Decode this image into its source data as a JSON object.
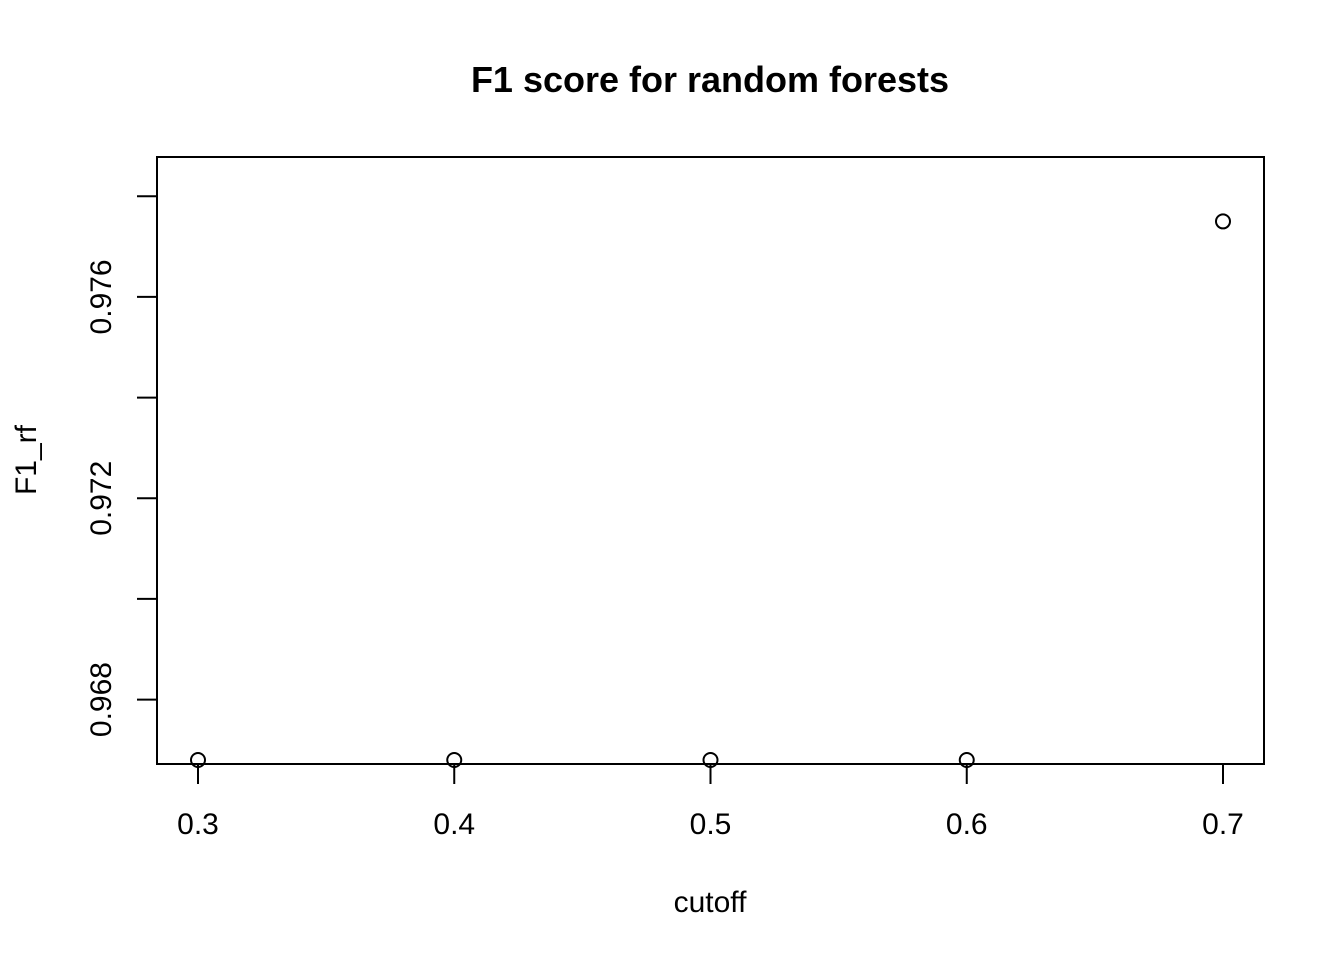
{
  "chart_data": {
    "type": "scatter",
    "title": "F1 score for random forests",
    "xlabel": "cutoff",
    "ylabel": "F1_rf",
    "x": [
      0.3,
      0.4,
      0.5,
      0.6,
      0.7
    ],
    "y": [
      0.9668,
      0.9668,
      0.9668,
      0.9668,
      0.9775
    ],
    "xlim": [
      0.284,
      0.716
    ],
    "ylim": [
      0.96672,
      0.97878
    ],
    "x_ticks": [
      0.3,
      0.4,
      0.5,
      0.6,
      0.7
    ],
    "x_tick_labels": [
      "0.3",
      "0.4",
      "0.5",
      "0.6",
      "0.7"
    ],
    "y_ticks": [
      0.966,
      0.968,
      0.97,
      0.972,
      0.974,
      0.976,
      0.978
    ],
    "y_tick_labels": [
      "",
      "0.968",
      "",
      "0.972",
      "",
      "0.976",
      ""
    ],
    "grid": false,
    "marker": "open-circle",
    "color": "#000000"
  }
}
